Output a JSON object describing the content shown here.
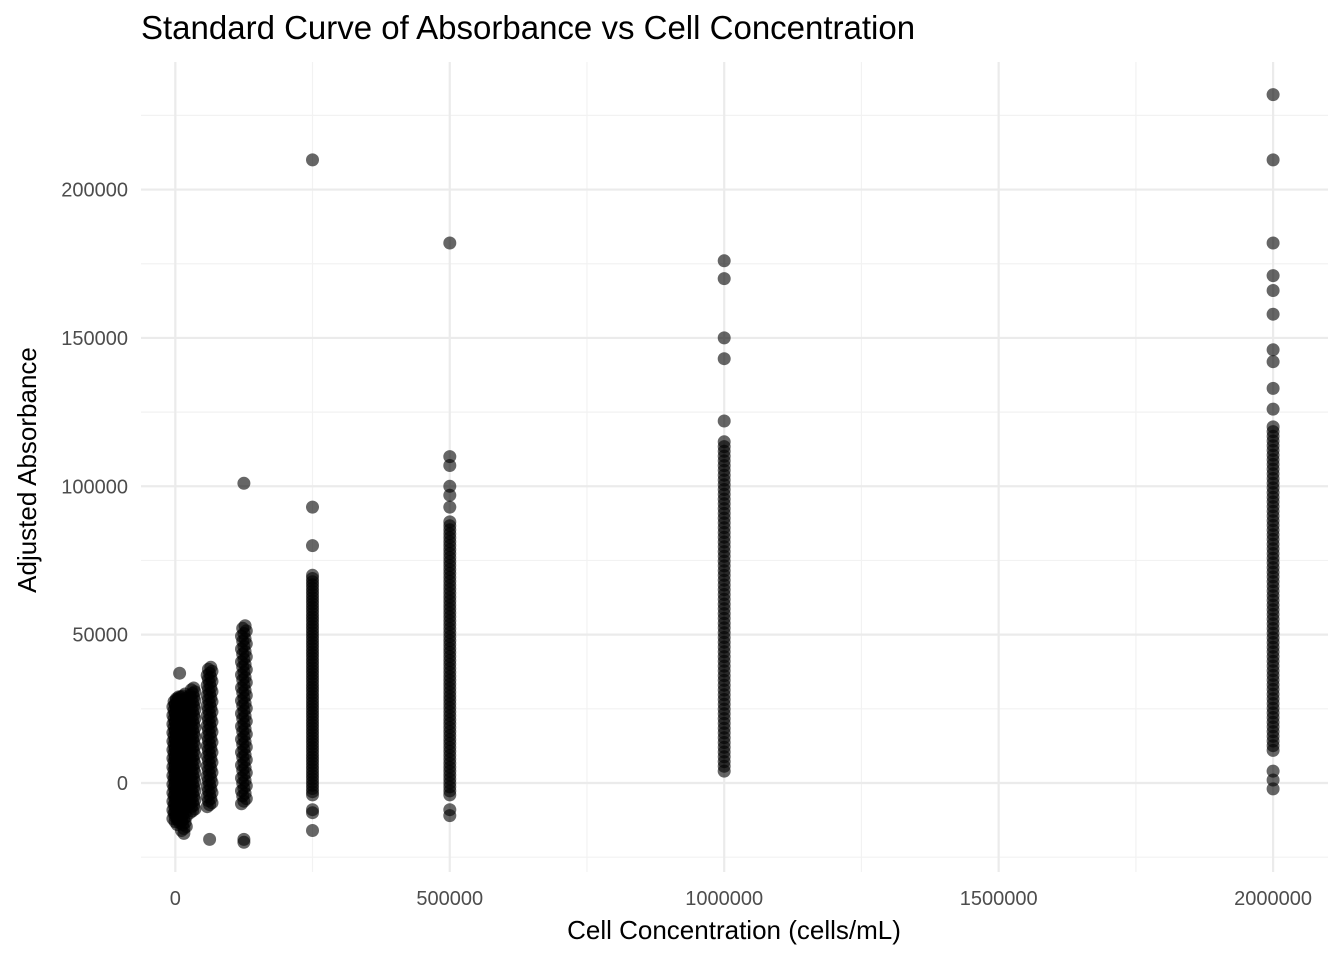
{
  "chart_data": {
    "type": "scatter",
    "title": "Standard Curve of Absorbance vs Cell Concentration",
    "xlabel": "Cell Concentration (cells/mL)",
    "ylabel": "Adjusted Absorbance",
    "xlim": [
      -62500,
      2100000
    ],
    "ylim": [
      -30000,
      243000
    ],
    "x_ticks": [
      0,
      500000,
      1000000,
      1500000,
      2000000
    ],
    "x_tick_labels": [
      "0",
      "500000",
      "1000000",
      "1500000",
      "2000000"
    ],
    "y_ticks": [
      0,
      50000,
      100000,
      150000,
      200000
    ],
    "y_tick_labels": [
      "0",
      "50000",
      "100000",
      "150000",
      "200000"
    ],
    "grid": true,
    "legend": "none",
    "point_color": "#000000",
    "point_opacity": 0.6,
    "groups": [
      {
        "x": 0,
        "min": -12000,
        "max": 28000,
        "outliers": []
      },
      {
        "x": 3906,
        "min": -13000,
        "max": 29000,
        "outliers": []
      },
      {
        "x": 7813,
        "min": -14000,
        "max": 29000,
        "outliers": [
          37000
        ]
      },
      {
        "x": 15625,
        "min": -16000,
        "max": 30000,
        "outliers": [
          -17000
        ]
      },
      {
        "x": 31250,
        "min": -10000,
        "max": 32000,
        "outliers": []
      },
      {
        "x": 62500,
        "min": -8000,
        "max": 39000,
        "outliers": [
          -19000
        ]
      },
      {
        "x": 125000,
        "min": -7000,
        "max": 53000,
        "outliers": [
          101000,
          -19000,
          -20000
        ]
      },
      {
        "x": 250000,
        "min": -4000,
        "max": 70000,
        "outliers": [
          210000,
          93000,
          80000,
          -9000,
          -10000,
          -16000
        ]
      },
      {
        "x": 500000,
        "min": -4000,
        "max": 88000,
        "outliers": [
          182000,
          110000,
          107000,
          100000,
          97000,
          93000,
          -9000,
          -11000
        ]
      },
      {
        "x": 1000000,
        "min": 4000,
        "max": 115000,
        "outliers": [
          176000,
          170000,
          150000,
          143000,
          122000
        ]
      },
      {
        "x": 2000000,
        "min": 11000,
        "max": 120000,
        "outliers": [
          232000,
          210000,
          182000,
          171000,
          166000,
          158000,
          146000,
          142000,
          133000,
          126000,
          4000,
          1000,
          -2000
        ]
      }
    ]
  }
}
